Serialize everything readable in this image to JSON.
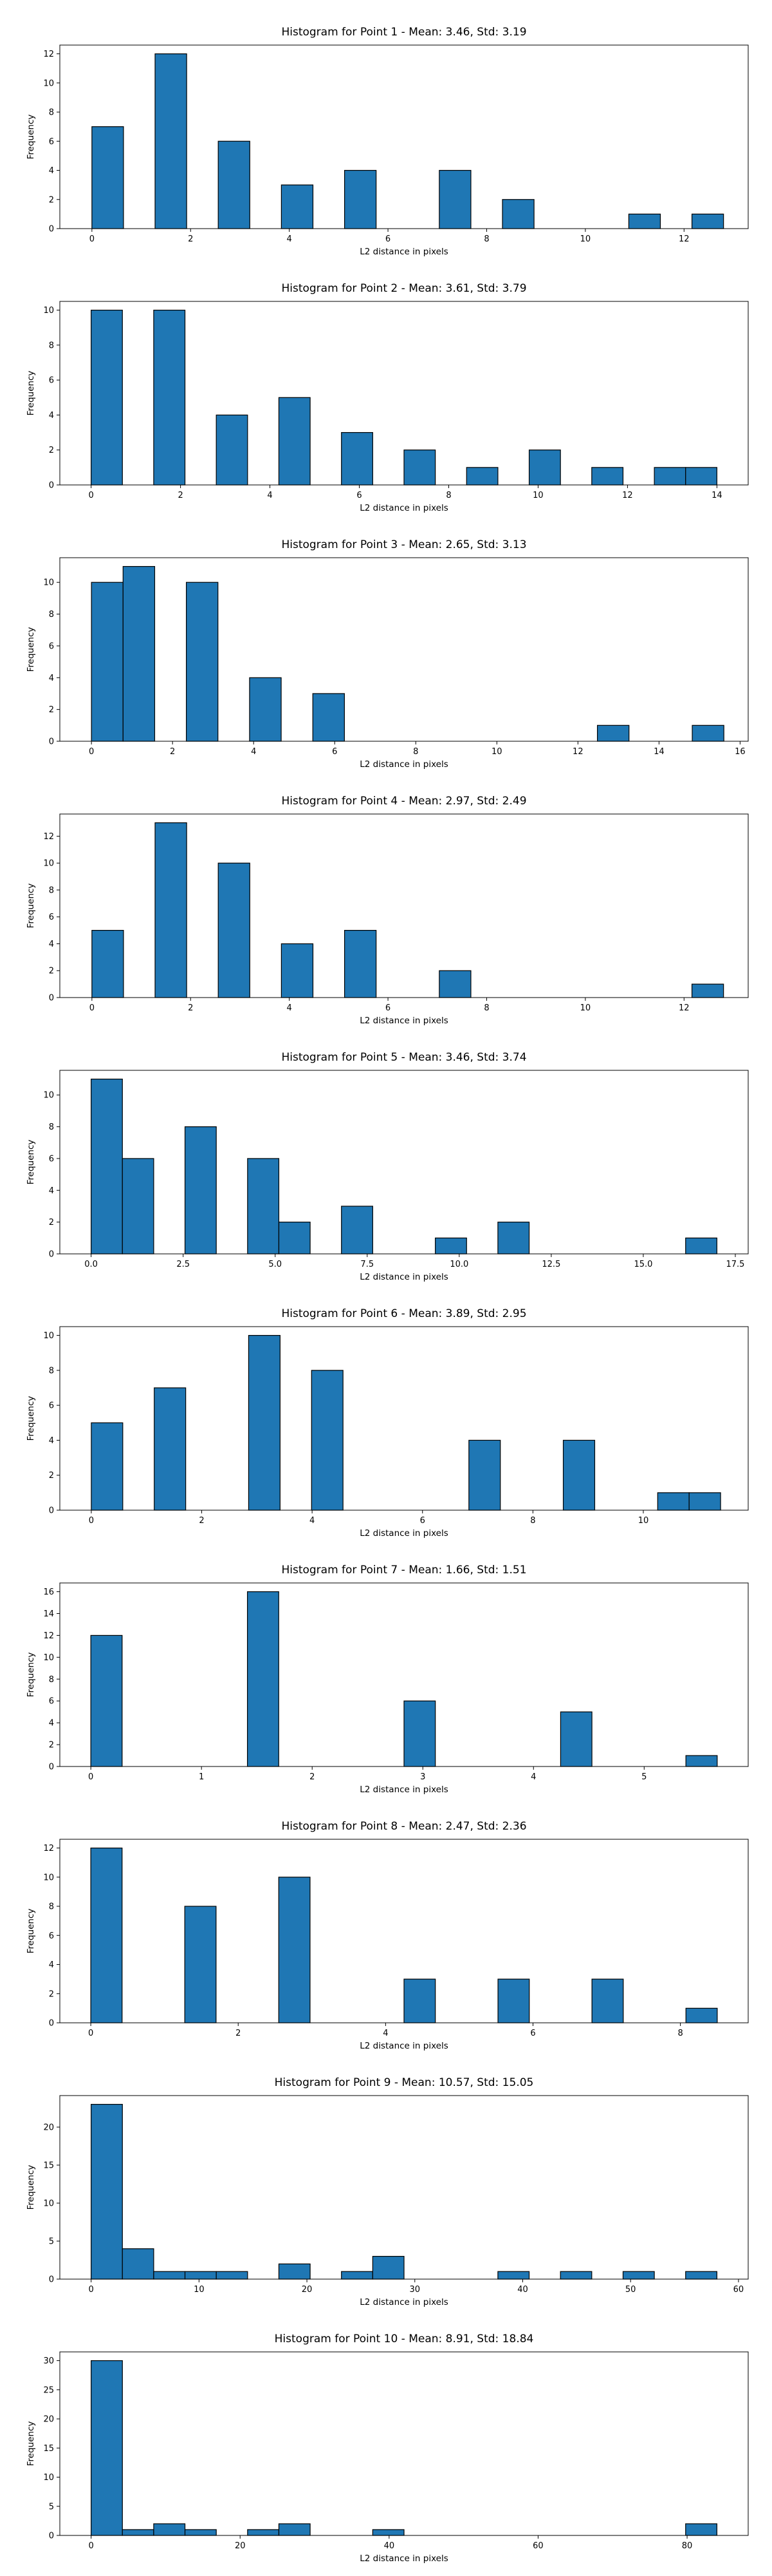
{
  "chart_data": [
    {
      "type": "bar",
      "title": "Histogram for Point 1 - Mean: 3.46, Std: 3.19",
      "xlabel": "L2 distance in pixels",
      "ylabel": "Frequency",
      "xlim": [
        -0.65,
        13.3
      ],
      "ylim": [
        0,
        12.6
      ],
      "xticks": [
        0,
        2,
        4,
        6,
        8,
        10,
        12
      ],
      "xtick_labels": [
        "0",
        "2",
        "4",
        "6",
        "8",
        "10",
        "12"
      ],
      "yticks": [
        0,
        2,
        4,
        6,
        8,
        10,
        12
      ],
      "bin_edges": [
        0,
        0.64,
        1.28,
        1.92,
        2.56,
        3.2,
        3.84,
        4.48,
        5.12,
        5.76,
        6.4,
        7.04,
        7.68,
        8.32,
        8.96,
        9.6,
        10.24,
        10.88,
        11.52,
        12.16,
        12.8
      ],
      "values": [
        7,
        0,
        12,
        0,
        6,
        0,
        3,
        0,
        4,
        0,
        0,
        4,
        0,
        2,
        0,
        0,
        0,
        1,
        0,
        1
      ],
      "color": "#1f77b4"
    },
    {
      "type": "bar",
      "title": "Histogram for Point 2 - Mean: 3.61, Std: 3.79",
      "xlabel": "L2 distance in pixels",
      "ylabel": "Frequency",
      "xlim": [
        -0.7,
        14.7
      ],
      "ylim": [
        0,
        10.5
      ],
      "xticks": [
        0,
        2,
        4,
        6,
        8,
        10,
        12,
        14
      ],
      "xtick_labels": [
        "0",
        "2",
        "4",
        "6",
        "8",
        "10",
        "12",
        "14"
      ],
      "yticks": [
        0,
        2,
        4,
        6,
        8,
        10
      ],
      "bin_edges": [
        0,
        0.7,
        1.4,
        2.1,
        2.8,
        3.5,
        4.2,
        4.9,
        5.6,
        6.3,
        7.0,
        7.7,
        8.4,
        9.1,
        9.8,
        10.5,
        11.2,
        11.9,
        12.6,
        13.3,
        14.0
      ],
      "values": [
        10,
        0,
        10,
        0,
        4,
        0,
        5,
        0,
        3,
        0,
        2,
        0,
        1,
        0,
        2,
        0,
        1,
        0,
        1,
        1
      ],
      "color": "#1f77b4"
    },
    {
      "type": "bar",
      "title": "Histogram for Point 3 - Mean: 2.65, Std: 3.13",
      "xlabel": "L2 distance in pixels",
      "ylabel": "Frequency",
      "xlim": [
        -0.78,
        16.2
      ],
      "ylim": [
        0,
        11.55
      ],
      "xticks": [
        0,
        2,
        4,
        6,
        8,
        10,
        12,
        14,
        16
      ],
      "xtick_labels": [
        "0",
        "2",
        "4",
        "6",
        "8",
        "10",
        "12",
        "14",
        "16"
      ],
      "yticks": [
        0,
        2,
        4,
        6,
        8,
        10
      ],
      "bin_edges": [
        0,
        0.78,
        1.56,
        2.34,
        3.12,
        3.9,
        4.68,
        5.46,
        6.24,
        7.02,
        7.8,
        8.58,
        9.36,
        10.14,
        10.92,
        11.7,
        12.48,
        13.26,
        14.04,
        14.82,
        15.6
      ],
      "values": [
        10,
        11,
        0,
        10,
        0,
        4,
        0,
        3,
        0,
        0,
        0,
        0,
        0,
        0,
        0,
        0,
        1,
        0,
        0,
        1
      ],
      "color": "#1f77b4"
    },
    {
      "type": "bar",
      "title": "Histogram for Point 4 - Mean: 2.97, Std: 2.49",
      "xlabel": "L2 distance in pixels",
      "ylabel": "Frequency",
      "xlim": [
        -0.65,
        13.3
      ],
      "ylim": [
        0,
        13.65
      ],
      "xticks": [
        0,
        2,
        4,
        6,
        8,
        10,
        12
      ],
      "xtick_labels": [
        "0",
        "2",
        "4",
        "6",
        "8",
        "10",
        "12"
      ],
      "yticks": [
        0,
        2,
        4,
        6,
        8,
        10,
        12
      ],
      "bin_edges": [
        0,
        0.64,
        1.28,
        1.92,
        2.56,
        3.2,
        3.84,
        4.48,
        5.12,
        5.76,
        6.4,
        7.04,
        7.68,
        8.32,
        8.96,
        9.6,
        10.24,
        10.88,
        11.52,
        12.16,
        12.8
      ],
      "values": [
        5,
        0,
        13,
        0,
        10,
        0,
        4,
        0,
        5,
        0,
        0,
        2,
        0,
        0,
        0,
        0,
        0,
        0,
        0,
        1
      ],
      "color": "#1f77b4"
    },
    {
      "type": "bar",
      "title": "Histogram for Point 5 - Mean: 3.46, Std: 3.74",
      "xlabel": "L2 distance in pixels",
      "ylabel": "Frequency",
      "xlim": [
        -0.85,
        17.85
      ],
      "ylim": [
        0,
        11.55
      ],
      "xticks": [
        0,
        2.5,
        5,
        7.5,
        10,
        12.5,
        15,
        17.5
      ],
      "xtick_labels": [
        "0.0",
        "2.5",
        "5.0",
        "7.5",
        "10.0",
        "12.5",
        "15.0",
        "17.5"
      ],
      "yticks": [
        0,
        2,
        4,
        6,
        8,
        10
      ],
      "bin_edges": [
        0,
        0.85,
        1.7,
        2.55,
        3.4,
        4.25,
        5.1,
        5.95,
        6.8,
        7.65,
        8.5,
        9.35,
        10.2,
        11.05,
        11.9,
        12.75,
        13.6,
        14.45,
        15.3,
        16.15,
        17.0
      ],
      "values": [
        11,
        6,
        0,
        8,
        0,
        6,
        2,
        0,
        3,
        0,
        0,
        1,
        0,
        2,
        0,
        0,
        0,
        0,
        0,
        1
      ],
      "color": "#1f77b4"
    },
    {
      "type": "bar",
      "title": "Histogram for Point 6 - Mean: 3.89, Std: 2.95",
      "xlabel": "L2 distance in pixels",
      "ylabel": "Frequency",
      "xlim": [
        -0.57,
        11.9
      ],
      "ylim": [
        0,
        10.5
      ],
      "xticks": [
        0,
        2,
        4,
        6,
        8,
        10
      ],
      "xtick_labels": [
        "0",
        "2",
        "4",
        "6",
        "8",
        "10"
      ],
      "yticks": [
        0,
        2,
        4,
        6,
        8,
        10
      ],
      "bin_edges": [
        0,
        0.57,
        1.14,
        1.71,
        2.28,
        2.85,
        3.42,
        3.99,
        4.56,
        5.13,
        5.7,
        6.27,
        6.84,
        7.41,
        7.98,
        8.55,
        9.12,
        9.69,
        10.26,
        10.83,
        11.4
      ],
      "values": [
        5,
        0,
        7,
        0,
        0,
        10,
        0,
        8,
        0,
        0,
        0,
        0,
        4,
        0,
        0,
        4,
        0,
        0,
        1,
        1
      ],
      "color": "#1f77b4"
    },
    {
      "type": "bar",
      "title": "Histogram for Point 7 - Mean: 1.66, Std: 1.51",
      "xlabel": "L2 distance in pixels",
      "ylabel": "Frequency",
      "xlim": [
        -0.28,
        5.94
      ],
      "ylim": [
        0,
        16.8
      ],
      "xticks": [
        0,
        1,
        2,
        3,
        4,
        5
      ],
      "xtick_labels": [
        "0",
        "1",
        "2",
        "3",
        "4",
        "5"
      ],
      "yticks": [
        0,
        2,
        4,
        6,
        8,
        10,
        12,
        14,
        16
      ],
      "bin_edges": [
        0,
        0.283,
        0.566,
        0.849,
        1.132,
        1.415,
        1.698,
        1.981,
        2.264,
        2.547,
        2.83,
        3.113,
        3.396,
        3.679,
        3.962,
        4.245,
        4.528,
        4.811,
        5.094,
        5.377,
        5.66
      ],
      "values": [
        12,
        0,
        0,
        0,
        0,
        16,
        0,
        0,
        0,
        0,
        6,
        0,
        0,
        0,
        0,
        5,
        0,
        0,
        0,
        1
      ],
      "color": "#1f77b4"
    },
    {
      "type": "bar",
      "title": "Histogram for Point 8 - Mean: 2.47, Std: 2.36",
      "xlabel": "L2 distance in pixels",
      "ylabel": "Frequency",
      "xlim": [
        -0.42,
        8.92
      ],
      "ylim": [
        0,
        12.6
      ],
      "xticks": [
        0,
        2,
        4,
        6,
        8
      ],
      "xtick_labels": [
        "0",
        "2",
        "4",
        "6",
        "8"
      ],
      "yticks": [
        0,
        2,
        4,
        6,
        8,
        10,
        12
      ],
      "bin_edges": [
        0,
        0.425,
        0.85,
        1.275,
        1.7,
        2.125,
        2.55,
        2.975,
        3.4,
        3.825,
        4.25,
        4.675,
        5.1,
        5.525,
        5.95,
        6.375,
        6.8,
        7.225,
        7.65,
        8.075,
        8.5
      ],
      "values": [
        12,
        0,
        0,
        8,
        0,
        0,
        10,
        0,
        0,
        0,
        3,
        0,
        0,
        3,
        0,
        0,
        3,
        0,
        0,
        1
      ],
      "color": "#1f77b4"
    },
    {
      "type": "bar",
      "title": "Histogram for Point 9 - Mean: 10.57, Std: 15.05",
      "xlabel": "L2 distance in pixels",
      "ylabel": "Frequency",
      "xlim": [
        -2.9,
        60.9
      ],
      "ylim": [
        0,
        24.15
      ],
      "xticks": [
        0,
        10,
        20,
        30,
        40,
        50,
        60
      ],
      "xtick_labels": [
        "0",
        "10",
        "20",
        "30",
        "40",
        "50",
        "60"
      ],
      "yticks": [
        0,
        5,
        10,
        15,
        20
      ],
      "bin_edges": [
        0,
        2.9,
        5.8,
        8.7,
        11.6,
        14.5,
        17.4,
        20.3,
        23.2,
        26.1,
        29.0,
        31.9,
        34.8,
        37.7,
        40.6,
        43.5,
        46.4,
        49.3,
        52.2,
        55.1,
        58.0
      ],
      "values": [
        23,
        4,
        1,
        1,
        1,
        0,
        2,
        0,
        1,
        3,
        0,
        0,
        0,
        1,
        0,
        1,
        0,
        1,
        0,
        1
      ],
      "color": "#1f77b4"
    },
    {
      "type": "bar",
      "title": "Histogram for Point 10 - Mean: 8.91, Std: 18.84",
      "xlabel": "L2 distance in pixels",
      "ylabel": "Frequency",
      "xlim": [
        -4.2,
        88.2
      ],
      "ylim": [
        0,
        31.5
      ],
      "xticks": [
        0,
        20,
        40,
        60,
        80
      ],
      "xtick_labels": [
        "0",
        "20",
        "40",
        "60",
        "80"
      ],
      "yticks": [
        0,
        5,
        10,
        15,
        20,
        25,
        30
      ],
      "bin_edges": [
        0,
        4.2,
        8.4,
        12.6,
        16.8,
        21.0,
        25.2,
        29.4,
        33.6,
        37.8,
        42.0,
        46.2,
        50.4,
        54.6,
        58.8,
        63.0,
        67.2,
        71.4,
        75.6,
        79.8,
        84.0
      ],
      "values": [
        30,
        1,
        2,
        1,
        0,
        1,
        2,
        0,
        0,
        1,
        0,
        0,
        0,
        0,
        0,
        0,
        0,
        0,
        0,
        2
      ],
      "color": "#1f77b4"
    }
  ]
}
